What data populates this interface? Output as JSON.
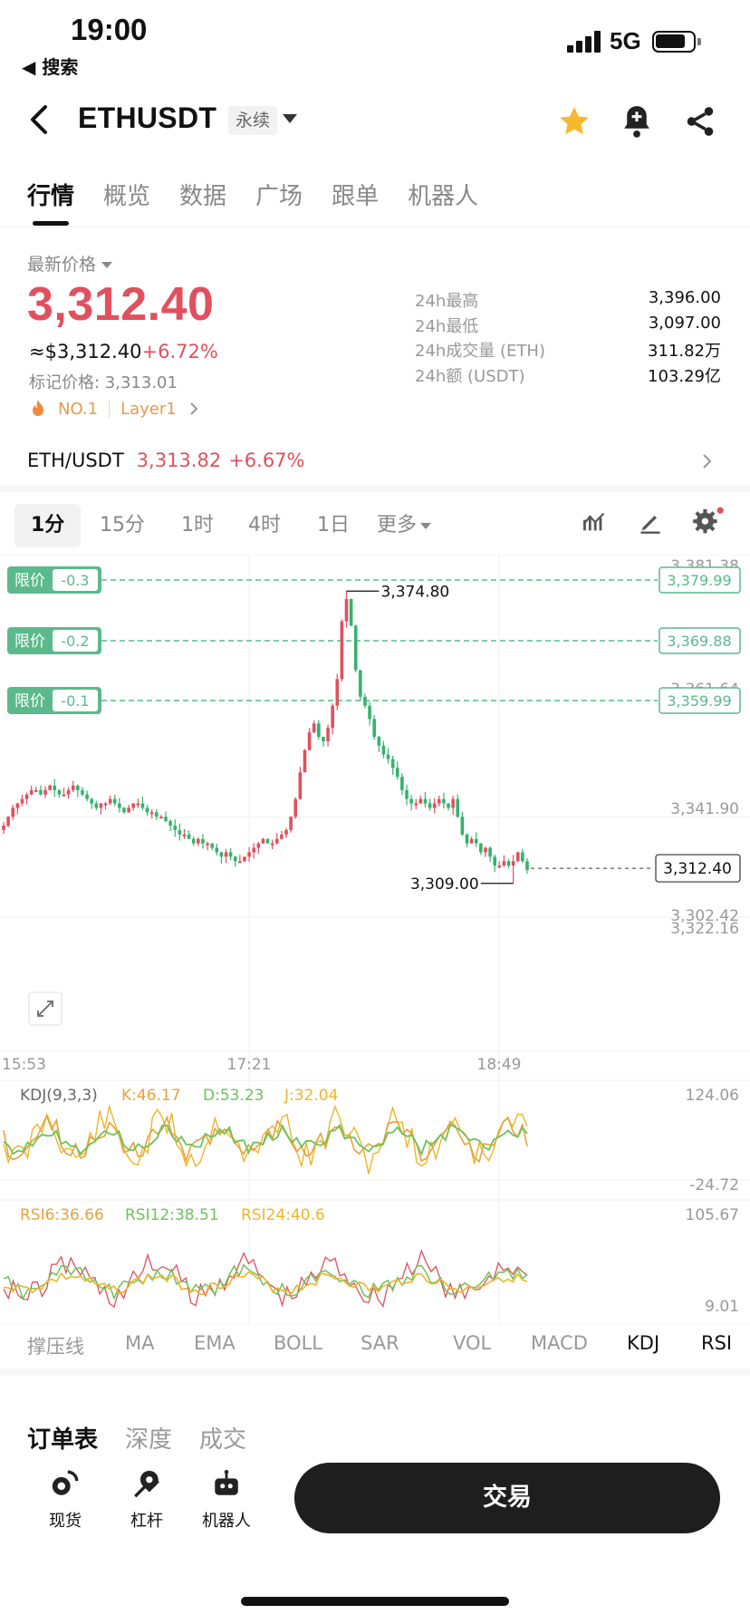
{
  "status_bar": {
    "time": "19:00",
    "back_label": "◀ 搜索",
    "network": "5G"
  },
  "header": {
    "symbol": "ETHUSDT",
    "contract_type": "永续",
    "icons": [
      "star-icon",
      "bell-plus-icon",
      "share-icon"
    ],
    "star_color": "#f5b82e"
  },
  "tabs": [
    "行情",
    "概览",
    "数据",
    "广场",
    "跟单",
    "机器人"
  ],
  "ticker": {
    "latest_label": "最新价格",
    "price": "3,312.40",
    "usd_value": "≈$3,312.40",
    "change_pct": "+6.72%",
    "mark_price": "标记价格: 3,313.01",
    "rank_tag": "NO.1",
    "category_tag": "Layer1",
    "stats": [
      {
        "label": "24h最高",
        "value": "3,396.00"
      },
      {
        "label": "24h最低",
        "value": "3,097.00"
      },
      {
        "label": "24h成交量 (ETH)",
        "value": "311.82万"
      },
      {
        "label": "24h额 (USDT)",
        "value": "103.29亿"
      }
    ]
  },
  "spot_pair": {
    "name": "ETH/USDT",
    "price": "3,313.82",
    "change": "+6.67%"
  },
  "intervals": [
    "1分",
    "15分",
    "1时",
    "4时",
    "1日",
    "更多"
  ],
  "intervals_active": "1分",
  "colors": {
    "up": "#e0505e",
    "down": "#34b36e",
    "limit": "#5cb98c",
    "kdj_k": "#e9a23b",
    "kdj_d": "#6cc35a",
    "kdj_j": "#f0b429"
  },
  "chart_data": {
    "type": "candlestick",
    "y_axis_ticks": [
      "3,381.38",
      "3,361.64",
      "3,341.90",
      "3,322.16",
      "3,302.42"
    ],
    "ylim": [
      3302.42,
      3381.38
    ],
    "x_axis_ticks": [
      "15:53",
      "17:21",
      "18:49"
    ],
    "high_marker": "3,374.80",
    "low_marker": "3,309.00",
    "last_price_tag": "3,312.40",
    "limit_orders": [
      {
        "label": "限价",
        "offset": "-0.3",
        "price": "3,379.99",
        "value": 3379.99
      },
      {
        "label": "限价",
        "offset": "-0.2",
        "price": "3,369.88",
        "value": 3369.88
      },
      {
        "label": "限价",
        "offset": "-0.1",
        "price": "3,359.99",
        "value": 3359.99
      }
    ],
    "closes": [
      3322,
      3324,
      3326,
      3327,
      3328,
      3329,
      3330,
      3330,
      3329,
      3330,
      3331,
      3330,
      3329,
      3329,
      3330,
      3331,
      3330,
      3329,
      3328,
      3327,
      3326,
      3327,
      3327,
      3328,
      3327,
      3326,
      3325,
      3326,
      3327,
      3327,
      3326,
      3325,
      3325,
      3324,
      3324,
      3323,
      3322,
      3321,
      3320,
      3320,
      3319,
      3318,
      3319,
      3318,
      3318,
      3317,
      3316,
      3315,
      3316,
      3315,
      3314,
      3314,
      3315,
      3316,
      3317,
      3318,
      3319,
      3318,
      3318,
      3319,
      3320,
      3321,
      3324,
      3328,
      3334,
      3339,
      3343,
      3345,
      3342,
      3341,
      3344,
      3349,
      3355,
      3368,
      3373,
      3367,
      3357,
      3351,
      3349,
      3346,
      3342,
      3340,
      3338,
      3337,
      3335,
      3333,
      3330,
      3328,
      3327,
      3327,
      3328,
      3327,
      3326,
      3327,
      3328,
      3327,
      3326,
      3328,
      3324,
      3320,
      3318,
      3319,
      3318,
      3316,
      3317,
      3315,
      3313,
      3313,
      3314,
      3313,
      3314,
      3316,
      3314,
      3312
    ]
  },
  "kdj": {
    "title": "KDJ(9,3,3)",
    "k": "K:46.17",
    "d": "D:53.23",
    "j": "J:32.04",
    "max": "124.06",
    "min": "-24.72"
  },
  "rsi": {
    "rsi6": "RSI6:36.66",
    "rsi12": "RSI12:38.51",
    "rsi24": "RSI24:40.6",
    "max": "105.67",
    "min": "9.01"
  },
  "indicator_tabs": [
    "撑压线",
    "MA",
    "EMA",
    "BOLL",
    "SAR",
    "VOL",
    "MACD",
    "KDJ",
    "RSI"
  ],
  "indicator_active": [
    "KDJ",
    "RSI"
  ],
  "orderbook_tabs": [
    "订单表",
    "深度",
    "成交"
  ],
  "bottom_bar": {
    "spot": "现货",
    "leverage": "杠杆",
    "bot": "机器人",
    "trade": "交易"
  }
}
